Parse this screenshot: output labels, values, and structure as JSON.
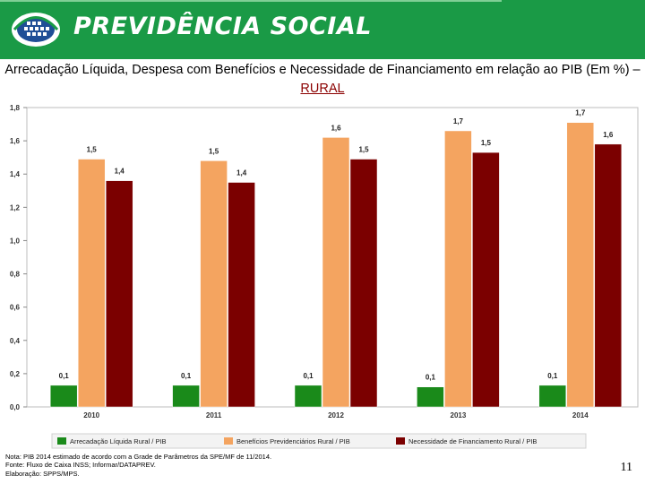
{
  "header": {
    "brand": "PREVIDÊNCIA SOCIAL",
    "colors": {
      "header_bg": "#1a9a46",
      "logo_blue": "#1f4e96"
    }
  },
  "title": {
    "main": "Arrecadação Líquida, Despesa com Benefícios e Necessidade de Financiamento em relação ao PIB (Em %) –",
    "highlight": "RURAL"
  },
  "chart_data": {
    "type": "bar",
    "categories": [
      "2010",
      "2011",
      "2012",
      "2013",
      "2014"
    ],
    "series": [
      {
        "name": "Arrecadação Líquida Rural / PIB",
        "values": [
          0.13,
          0.13,
          0.13,
          0.12,
          0.13
        ],
        "labels": [
          "0,1",
          "0,1",
          "0,1",
          "0,1",
          "0,1"
        ],
        "color": "#1a8a1a"
      },
      {
        "name": "Benefícios Previdenciários Rural / PIB",
        "values": [
          1.49,
          1.48,
          1.62,
          1.66,
          1.71
        ],
        "labels": [
          "1,5",
          "1,5",
          "1,6",
          "1,7",
          "1,7"
        ],
        "color": "#f4a460"
      },
      {
        "name": "Necessidade de Financiamento Rural / PIB",
        "values": [
          1.36,
          1.35,
          1.49,
          1.53,
          1.58
        ],
        "labels": [
          "1,4",
          "1,4",
          "1,5",
          "1,5",
          "1,6"
        ],
        "color": "#7b0000"
      }
    ],
    "yticks": [
      "0,0",
      "0,2",
      "0,4",
      "0,6",
      "0,8",
      "1,0",
      "1,2",
      "1,4",
      "1,6",
      "1,8"
    ],
    "ylim": [
      0,
      1.8
    ],
    "title": "",
    "xlabel": "",
    "ylabel": "",
    "legend": "bottom"
  },
  "footer": {
    "note1": "Nota: PIB 2014 estimado de acordo com a Grade de Parâmetros da SPE/MF de 11/2014.",
    "note2": "Fonte: Fluxo de Caixa INSS; Informar/DATAPREV.",
    "note3": "Elaboração: SPPS/MPS.",
    "page_number": "11"
  }
}
